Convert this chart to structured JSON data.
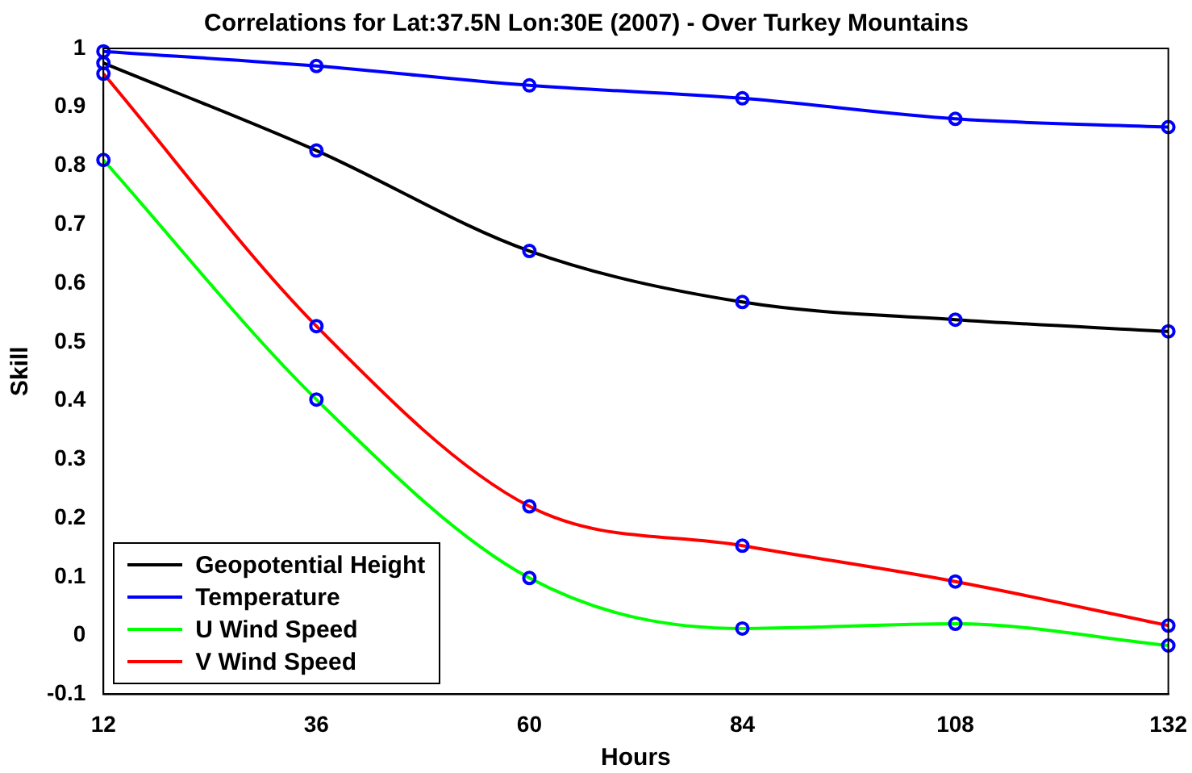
{
  "chart_data": {
    "type": "line",
    "title": "Correlations for Lat:37.5N Lon:30E (2007) - Over Turkey Mountains",
    "xlabel": "Hours",
    "ylabel": "Skill",
    "x": [
      12,
      36,
      60,
      84,
      108,
      132
    ],
    "series": [
      {
        "name": "Geopotential Height",
        "color": "#000000",
        "values": [
          0.975,
          0.826,
          0.655,
          0.568,
          0.538,
          0.518
        ]
      },
      {
        "name": "Temperature",
        "color": "#0000ff",
        "values": [
          0.995,
          0.97,
          0.937,
          0.915,
          0.88,
          0.866
        ]
      },
      {
        "name": "U Wind Speed",
        "color": "#00ff00",
        "values": [
          0.81,
          0.402,
          0.098,
          0.012,
          0.02,
          -0.017
        ]
      },
      {
        "name": "V Wind Speed",
        "color": "#ff0000",
        "values": [
          0.957,
          0.527,
          0.22,
          0.153,
          0.092,
          0.017
        ]
      }
    ],
    "xlim": [
      12,
      132
    ],
    "xticks": [
      12,
      36,
      60,
      84,
      108,
      132
    ],
    "ylim": [
      -0.1,
      1
    ],
    "yticks": [
      -0.1,
      0,
      0.1,
      0.2,
      0.3,
      0.4,
      0.5,
      0.6,
      0.7,
      0.8,
      0.9,
      1
    ],
    "grid": false,
    "legend": "bottom left",
    "marker": "circle",
    "line_style": "solid"
  }
}
